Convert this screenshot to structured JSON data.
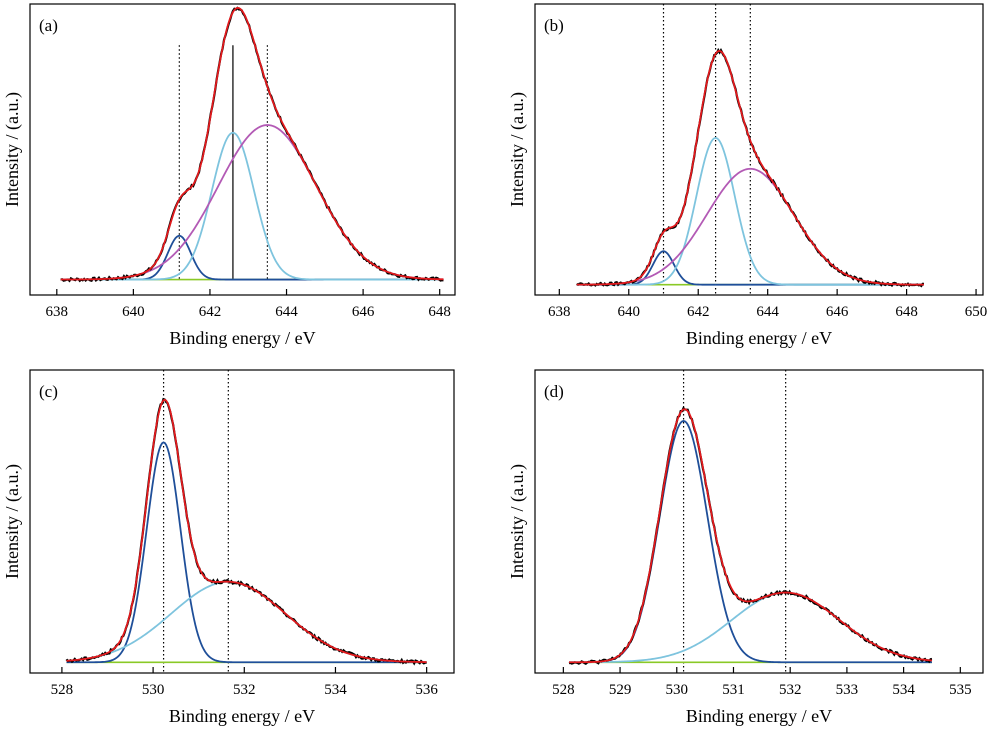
{
  "figure": {
    "colors": {
      "experimental": "#000000",
      "envelope": "#e3191c",
      "peak_dark_blue": "#1f4f99",
      "peak_light_blue": "#7ec4de",
      "peak_purple": "#b35ab5",
      "baseline": "#8ac926"
    }
  },
  "chart_data": [
    {
      "panel": "(a)",
      "type": "line",
      "xlabel": "Binding energy / eV",
      "ylabel": "Intensity / (a.u.)",
      "xlim": [
        637.3,
        648.4
      ],
      "xticks": [
        638,
        640,
        642,
        644,
        646,
        648
      ],
      "xrange_data": [
        638.1,
        648.1
      ],
      "baseline": 0.06,
      "peaks": [
        {
          "center": 641.2,
          "height": 0.17,
          "sigma": 0.3,
          "color": "peak_dark_blue"
        },
        {
          "center": 642.6,
          "height": 0.57,
          "sigma": 0.55,
          "color": "peak_light_blue"
        },
        {
          "center": 643.5,
          "height": 0.6,
          "sigma": 1.28,
          "color": "peak_purple"
        }
      ],
      "vlines": [
        {
          "x": 641.2,
          "style": "dotted"
        },
        {
          "x": 642.6,
          "style": "solid"
        },
        {
          "x": 643.5,
          "style": "dotted"
        }
      ],
      "ylim": [
        0,
        1.13
      ]
    },
    {
      "panel": "(b)",
      "type": "line",
      "xlabel": "Binding energy / eV",
      "ylabel": "Intensity / (a.u.)",
      "xlim": [
        637.3,
        650.2
      ],
      "xticks": [
        638,
        640,
        642,
        644,
        646,
        648,
        650
      ],
      "xrange_data": [
        638.5,
        648.5
      ],
      "baseline": 0.04,
      "peaks": [
        {
          "center": 641.0,
          "height": 0.13,
          "sigma": 0.3,
          "color": "peak_dark_blue"
        },
        {
          "center": 642.5,
          "height": 0.57,
          "sigma": 0.55,
          "color": "peak_light_blue"
        },
        {
          "center": 643.5,
          "height": 0.45,
          "sigma": 1.25,
          "color": "peak_purple"
        }
      ],
      "vlines": [
        {
          "x": 641.0,
          "style": "dotted"
        },
        {
          "x": 642.5,
          "style": "dotted"
        },
        {
          "x": 643.5,
          "style": "dotted"
        }
      ],
      "ylim": [
        0,
        1.13
      ]
    },
    {
      "panel": "(c)",
      "type": "line",
      "xlabel": "Binding energy / eV",
      "ylabel": "Intensity / (a.u.)",
      "xlim": [
        527.3,
        536.6
      ],
      "xticks": [
        528,
        530,
        532,
        534,
        536
      ],
      "xrange_data": [
        528.1,
        536.0
      ],
      "baseline": 0.04,
      "peaks": [
        {
          "center": 530.23,
          "height": 0.82,
          "sigma": 0.37,
          "color": "peak_dark_blue"
        },
        {
          "center": 531.65,
          "height": 0.3,
          "sigma": 1.25,
          "color": "peak_light_blue"
        }
      ],
      "vlines": [
        {
          "x": 530.23,
          "style": "dotted"
        },
        {
          "x": 531.65,
          "style": "dotted"
        }
      ],
      "ylim": [
        0,
        1.13
      ]
    },
    {
      "panel": "(d)",
      "type": "line",
      "xlabel": "Binding energy / eV",
      "ylabel": "Intensity / (a.u.)",
      "xlim": [
        527.5,
        535.4
      ],
      "xticks": [
        528,
        529,
        530,
        531,
        532,
        533,
        534,
        535
      ],
      "xrange_data": [
        528.1,
        534.5
      ],
      "baseline": 0.04,
      "peaks": [
        {
          "center": 530.12,
          "height": 0.9,
          "sigma": 0.42,
          "color": "peak_dark_blue"
        },
        {
          "center": 531.92,
          "height": 0.26,
          "sigma": 0.95,
          "color": "peak_light_blue"
        }
      ],
      "vlines": [
        {
          "x": 530.12,
          "style": "dotted"
        },
        {
          "x": 531.92,
          "style": "dotted"
        }
      ],
      "ylim": [
        0,
        1.13
      ]
    }
  ]
}
